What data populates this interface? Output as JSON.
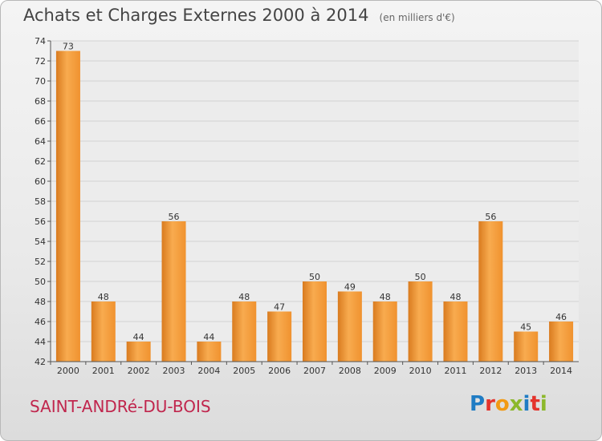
{
  "chart_data": {
    "type": "bar",
    "title": "Achats et Charges Externes 2000 à 2014",
    "subtitle": "(en milliers d'€)",
    "categories": [
      "2000",
      "2001",
      "2002",
      "2003",
      "2004",
      "2005",
      "2006",
      "2007",
      "2008",
      "2009",
      "2010",
      "2011",
      "2012",
      "2013",
      "2014"
    ],
    "values": [
      73,
      48,
      44,
      56,
      44,
      48,
      47,
      50,
      49,
      48,
      50,
      48,
      56,
      45,
      46
    ],
    "ylim": [
      42,
      74
    ],
    "yticks": [
      42,
      44,
      46,
      48,
      50,
      52,
      54,
      56,
      58,
      60,
      62,
      64,
      66,
      68,
      70,
      72,
      74
    ],
    "grid": true,
    "bar_color": "#f0922f",
    "bar_color_light": "#f8ab4f",
    "bar_color_dark": "#d97b1f",
    "xlabel": "",
    "ylabel": ""
  },
  "footer": {
    "commune": "SAINT-ANDRé-DU-BOIS",
    "logo_text": "Proxiti",
    "logo_colors": [
      "#1f7cc4",
      "#e4332c",
      "#f29a14",
      "#8cb82b",
      "#1f7cc4",
      "#e4332c",
      "#8cb82b"
    ]
  }
}
